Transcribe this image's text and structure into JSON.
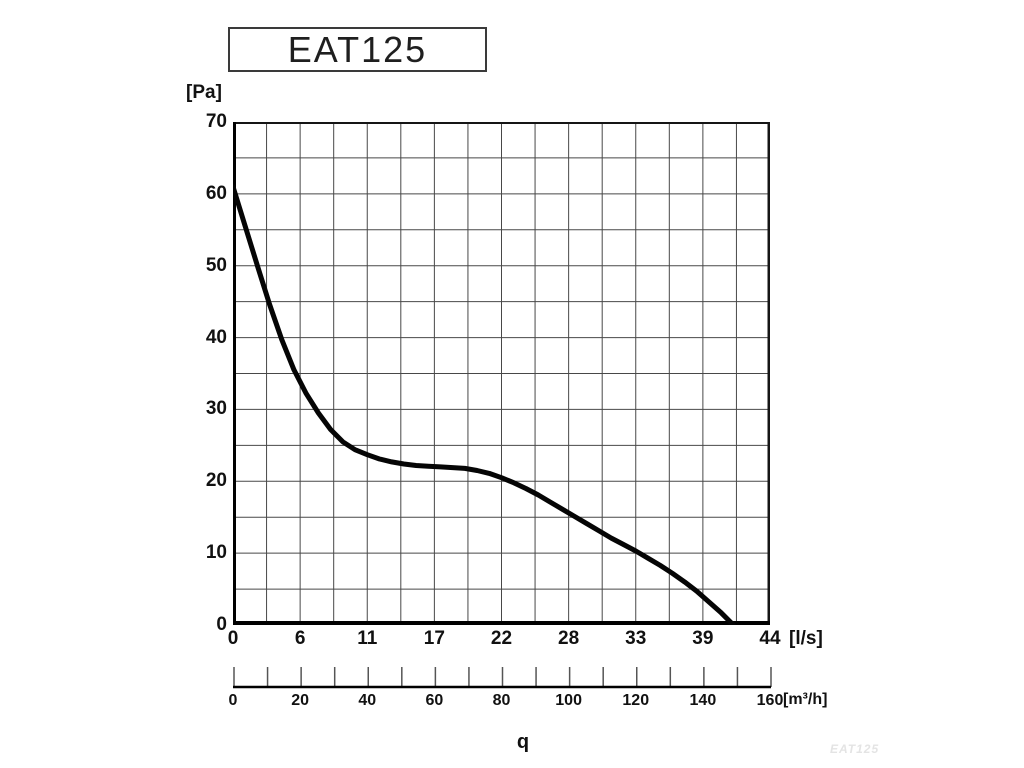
{
  "title_box": {
    "label": "EAT125"
  },
  "watermark": {
    "text": "EAT125"
  },
  "colors": {
    "background": "#ffffff",
    "grid": "#484848",
    "frame": "#151515",
    "axis": "#000000",
    "curve": "#050505",
    "text": "#111111",
    "watermark": "#e4e4e4",
    "secondary_tick": "#555555"
  },
  "chart_data": {
    "type": "line",
    "title": "EAT125",
    "ylabel": "[Pa]",
    "xlabel_primary": "[l/s]",
    "xlabel_secondary": "[m³/h]",
    "flow_symbol": "q",
    "ylim": [
      0,
      70
    ],
    "y_ticks": [
      70,
      60,
      50,
      40,
      30,
      20,
      10,
      0
    ],
    "xlim_ls": [
      0,
      44
    ],
    "x_ticks_ls": [
      "0",
      "6",
      "11",
      "17",
      "22",
      "28",
      "33",
      "39",
      "44"
    ],
    "xlim_m3h": [
      0,
      160
    ],
    "x_ticks_m3h": [
      "0",
      "20",
      "40",
      "60",
      "80",
      "100",
      "120",
      "140",
      "160"
    ],
    "grid": {
      "on": true,
      "x_divisions": 16,
      "y_divisions": 14
    },
    "legend": "none",
    "series": [
      {
        "name": "EAT125 fan pressure curve",
        "x_unit": "l/s",
        "y_unit": "Pa",
        "points": [
          [
            0,
            61
          ],
          [
            1,
            55.5
          ],
          [
            2,
            50
          ],
          [
            3,
            44.6
          ],
          [
            4,
            39.7
          ],
          [
            5,
            35.5
          ],
          [
            6,
            32.2
          ],
          [
            7,
            29.5
          ],
          [
            8,
            27.2
          ],
          [
            9,
            25.5
          ],
          [
            10,
            24.4
          ],
          [
            11,
            23.7
          ],
          [
            12,
            23.1
          ],
          [
            13,
            22.7
          ],
          [
            14,
            22.4
          ],
          [
            15,
            22.2
          ],
          [
            16,
            22.1
          ],
          [
            17,
            22.0
          ],
          [
            18,
            21.9
          ],
          [
            19,
            21.8
          ],
          [
            20,
            21.5
          ],
          [
            21,
            21.1
          ],
          [
            22,
            20.5
          ],
          [
            23,
            19.8
          ],
          [
            24,
            19.0
          ],
          [
            25,
            18.1
          ],
          [
            26,
            17.1
          ],
          [
            27,
            16.1
          ],
          [
            28,
            15.1
          ],
          [
            29,
            14.1
          ],
          [
            30,
            13.1
          ],
          [
            31,
            12.1
          ],
          [
            32,
            11.2
          ],
          [
            33,
            10.3
          ],
          [
            34,
            9.3
          ],
          [
            35,
            8.3
          ],
          [
            36,
            7.2
          ],
          [
            37,
            6.0
          ],
          [
            38,
            4.7
          ],
          [
            39,
            3.2
          ],
          [
            40,
            1.7
          ],
          [
            41,
            0
          ]
        ]
      }
    ]
  }
}
